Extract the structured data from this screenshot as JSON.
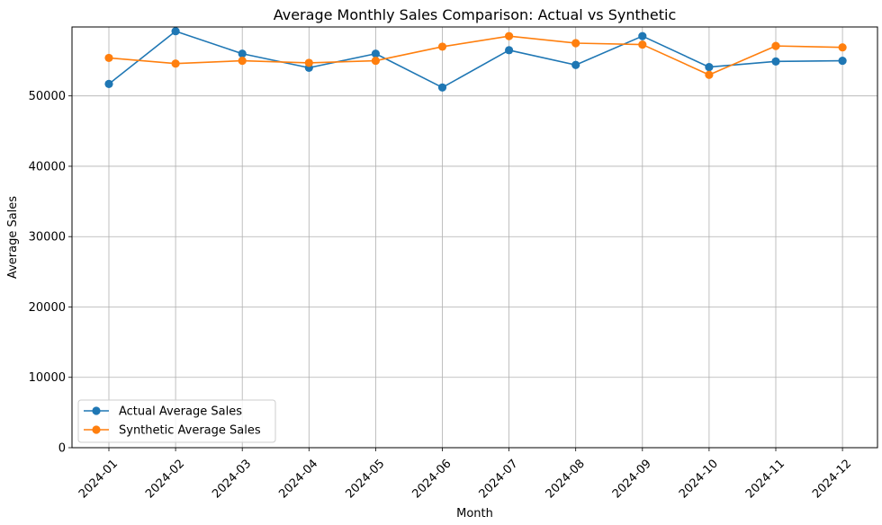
{
  "chart_data": {
    "type": "line",
    "title": "Average Monthly Sales Comparison: Actual vs Synthetic",
    "xlabel": "Month",
    "ylabel": "Average Sales",
    "categories": [
      "2024-01",
      "2024-02",
      "2024-03",
      "2024-04",
      "2024-05",
      "2024-06",
      "2024-07",
      "2024-08",
      "2024-09",
      "2024-10",
      "2024-11",
      "2024-12"
    ],
    "ylim": [
      0,
      59800
    ],
    "yticks": [
      0,
      10000,
      20000,
      30000,
      40000,
      50000
    ],
    "grid": true,
    "legend_position": "lower-left",
    "series": [
      {
        "name": "Actual Average Sales",
        "color": "#1f77b4",
        "values": [
          51700,
          59200,
          56000,
          54000,
          56000,
          51200,
          56500,
          54400,
          58500,
          54100,
          54900,
          55000
        ]
      },
      {
        "name": "Synthetic Average Sales",
        "color": "#ff7f0e",
        "values": [
          55400,
          54600,
          55000,
          54700,
          55000,
          57000,
          58500,
          57500,
          57300,
          53000,
          57100,
          56900
        ]
      }
    ]
  }
}
